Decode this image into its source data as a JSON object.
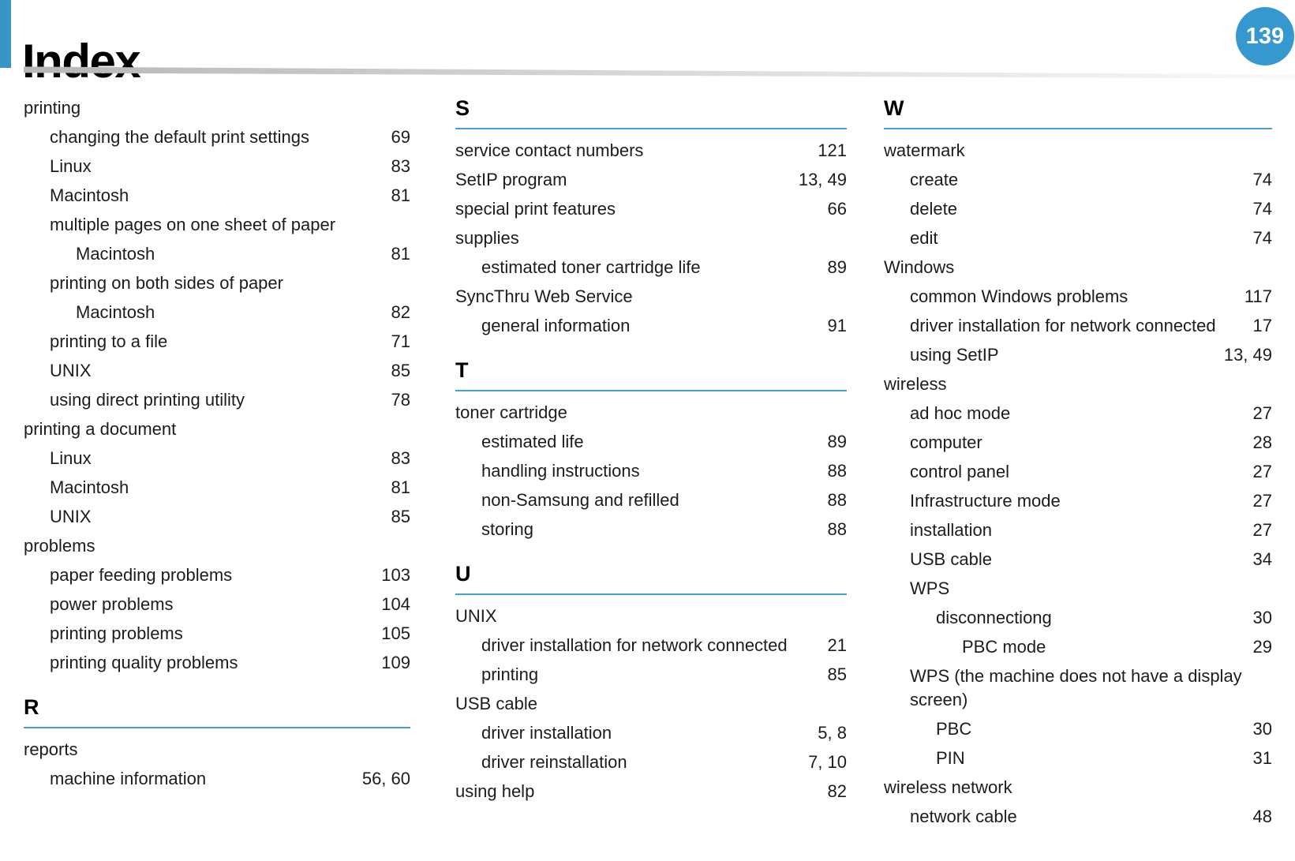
{
  "header": {
    "title": "Index",
    "page_number": "139"
  },
  "theme": {
    "accent_bar": "#3795c7",
    "badge": "#3598ce",
    "rule": "#4aa0d2",
    "text": "#1c1c1c"
  },
  "columns": [
    {
      "items": [
        {
          "kind": "entry",
          "text": "printing",
          "level": 0,
          "pages": ""
        },
        {
          "kind": "entry",
          "text": "changing the default print settings",
          "level": 1,
          "pages": "69"
        },
        {
          "kind": "entry",
          "text": "Linux",
          "level": 1,
          "pages": "83"
        },
        {
          "kind": "entry",
          "text": "Macintosh",
          "level": 1,
          "pages": "81"
        },
        {
          "kind": "entry",
          "text": "multiple pages on one sheet of paper",
          "level": 1,
          "pages": ""
        },
        {
          "kind": "entry",
          "text": "Macintosh",
          "level": 2,
          "pages": "81"
        },
        {
          "kind": "entry",
          "text": "printing on both sides of paper",
          "level": 1,
          "pages": ""
        },
        {
          "kind": "entry",
          "text": "Macintosh",
          "level": 2,
          "pages": "82"
        },
        {
          "kind": "entry",
          "text": "printing to a file",
          "level": 1,
          "pages": "71"
        },
        {
          "kind": "entry",
          "text": "UNIX",
          "level": 1,
          "pages": "85"
        },
        {
          "kind": "entry",
          "text": "using direct printing utility",
          "level": 1,
          "pages": "78"
        },
        {
          "kind": "entry",
          "text": "printing a document",
          "level": 0,
          "pages": ""
        },
        {
          "kind": "entry",
          "text": "Linux",
          "level": 1,
          "pages": "83"
        },
        {
          "kind": "entry",
          "text": "Macintosh",
          "level": 1,
          "pages": "81"
        },
        {
          "kind": "entry",
          "text": "UNIX",
          "level": 1,
          "pages": "85"
        },
        {
          "kind": "entry",
          "text": "problems",
          "level": 0,
          "pages": ""
        },
        {
          "kind": "entry",
          "text": "paper feeding problems",
          "level": 1,
          "pages": "103"
        },
        {
          "kind": "entry",
          "text": "power problems",
          "level": 1,
          "pages": "104"
        },
        {
          "kind": "entry",
          "text": "printing problems",
          "level": 1,
          "pages": "105"
        },
        {
          "kind": "entry",
          "text": "printing quality problems",
          "level": 1,
          "pages": "109"
        },
        {
          "kind": "section",
          "letter": "R"
        },
        {
          "kind": "entry",
          "text": "reports",
          "level": 0,
          "pages": ""
        },
        {
          "kind": "entry",
          "text": "machine information",
          "level": 1,
          "pages": "56, 60"
        }
      ]
    },
    {
      "items": [
        {
          "kind": "section",
          "letter": "S"
        },
        {
          "kind": "entry",
          "text": "service contact numbers",
          "level": 0,
          "pages": "121"
        },
        {
          "kind": "entry",
          "text": "SetIP program",
          "level": 0,
          "pages": "13, 49"
        },
        {
          "kind": "entry",
          "text": "special print features",
          "level": 0,
          "pages": "66"
        },
        {
          "kind": "entry",
          "text": "supplies",
          "level": 0,
          "pages": ""
        },
        {
          "kind": "entry",
          "text": "estimated toner cartridge life",
          "level": 1,
          "pages": "89"
        },
        {
          "kind": "entry",
          "text": "SyncThru Web Service",
          "level": 0,
          "pages": ""
        },
        {
          "kind": "entry",
          "text": "general information",
          "level": 1,
          "pages": "91"
        },
        {
          "kind": "section",
          "letter": "T"
        },
        {
          "kind": "entry",
          "text": "toner cartridge",
          "level": 0,
          "pages": ""
        },
        {
          "kind": "entry",
          "text": "estimated life",
          "level": 1,
          "pages": "89"
        },
        {
          "kind": "entry",
          "text": "handling instructions",
          "level": 1,
          "pages": "88"
        },
        {
          "kind": "entry",
          "text": "non-Samsung and refilled",
          "level": 1,
          "pages": "88"
        },
        {
          "kind": "entry",
          "text": "storing",
          "level": 1,
          "pages": "88"
        },
        {
          "kind": "section",
          "letter": "U"
        },
        {
          "kind": "entry",
          "text": "UNIX",
          "level": 0,
          "pages": ""
        },
        {
          "kind": "entry",
          "text": "driver installation for network connected",
          "level": 1,
          "pages": "21"
        },
        {
          "kind": "entry",
          "text": "printing",
          "level": 1,
          "pages": "85"
        },
        {
          "kind": "entry",
          "text": "USB cable",
          "level": 0,
          "pages": ""
        },
        {
          "kind": "entry",
          "text": "driver installation",
          "level": 1,
          "pages": "5, 8"
        },
        {
          "kind": "entry",
          "text": "driver reinstallation",
          "level": 1,
          "pages": "7, 10"
        },
        {
          "kind": "entry",
          "text": "using help",
          "level": 0,
          "pages": "82"
        }
      ]
    },
    {
      "items": [
        {
          "kind": "section",
          "letter": "W"
        },
        {
          "kind": "entry",
          "text": "watermark",
          "level": 0,
          "pages": ""
        },
        {
          "kind": "entry",
          "text": "create",
          "level": 1,
          "pages": "74"
        },
        {
          "kind": "entry",
          "text": "delete",
          "level": 1,
          "pages": "74"
        },
        {
          "kind": "entry",
          "text": "edit",
          "level": 1,
          "pages": "74"
        },
        {
          "kind": "entry",
          "text": "Windows",
          "level": 0,
          "pages": ""
        },
        {
          "kind": "entry",
          "text": "common Windows problems",
          "level": 1,
          "pages": "117"
        },
        {
          "kind": "entry",
          "text": "driver installation for network connected",
          "level": 1,
          "pages": "17"
        },
        {
          "kind": "entry",
          "text": "using SetIP",
          "level": 1,
          "pages": "13, 49"
        },
        {
          "kind": "entry",
          "text": "wireless",
          "level": 0,
          "pages": ""
        },
        {
          "kind": "entry",
          "text": "ad hoc mode",
          "level": 1,
          "pages": "27"
        },
        {
          "kind": "entry",
          "text": "computer",
          "level": 1,
          "pages": "28"
        },
        {
          "kind": "entry",
          "text": "control panel",
          "level": 1,
          "pages": "27"
        },
        {
          "kind": "entry",
          "text": "Infrastructure mode",
          "level": 1,
          "pages": "27"
        },
        {
          "kind": "entry",
          "text": "installation",
          "level": 1,
          "pages": "27"
        },
        {
          "kind": "entry",
          "text": "USB cable",
          "level": 1,
          "pages": "34"
        },
        {
          "kind": "entry",
          "text": "WPS",
          "level": 1,
          "pages": ""
        },
        {
          "kind": "entry",
          "text": "disconnectiong",
          "level": 2,
          "pages": "30"
        },
        {
          "kind": "entry",
          "text": "PBC mode",
          "level": 3,
          "pages": "29"
        },
        {
          "kind": "entry",
          "text": "WPS (the machine does not have a display screen)",
          "level": 1,
          "pages": ""
        },
        {
          "kind": "entry",
          "text": "PBC",
          "level": 2,
          "pages": "30"
        },
        {
          "kind": "entry",
          "text": "PIN",
          "level": 2,
          "pages": "31"
        },
        {
          "kind": "entry",
          "text": "wireless network",
          "level": 0,
          "pages": ""
        },
        {
          "kind": "entry",
          "text": "network cable",
          "level": 1,
          "pages": "48"
        }
      ]
    }
  ]
}
